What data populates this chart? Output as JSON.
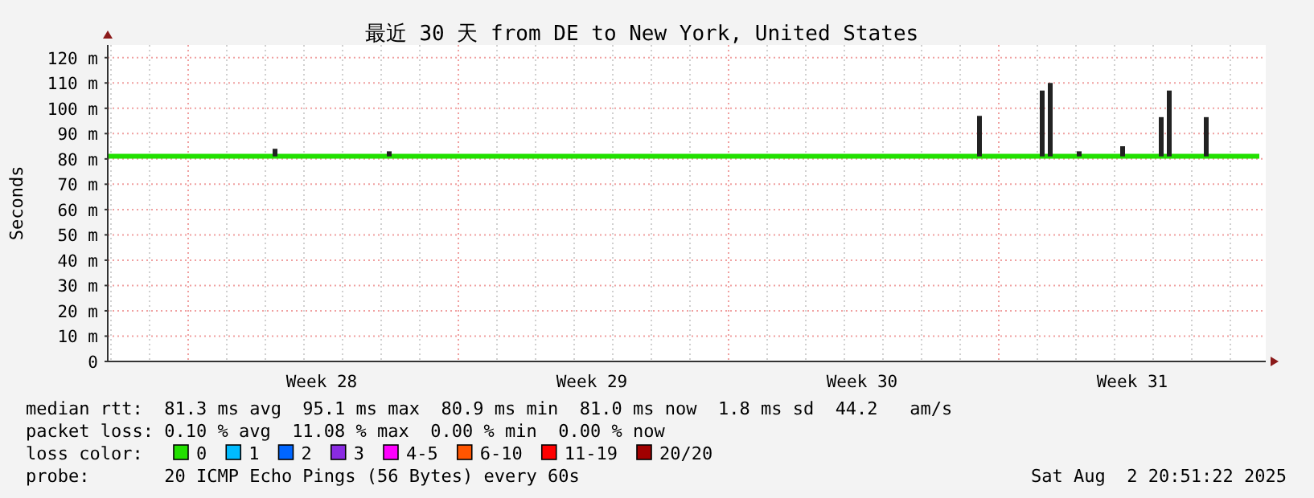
{
  "chart_data": {
    "type": "line",
    "title": "最近 30 天 from DE to New York, United States",
    "ylabel": "Seconds",
    "legend_title": "loss color:",
    "legend": "bottom",
    "grid": true,
    "line_style": "solid",
    "xlim": [
      "2025-07-04T22:00",
      "2025-08-03T22:00"
    ],
    "xticks": [
      {
        "value": "2025-07-10T11:00",
        "label": "Week 28"
      },
      {
        "value": "2025-07-17T11:00",
        "label": "Week 29"
      },
      {
        "value": "2025-07-24T11:00",
        "label": "Week 30"
      },
      {
        "value": "2025-07-31T11:00",
        "label": "Week 31"
      }
    ],
    "ylim": [
      0,
      125
    ],
    "yticks": [
      0,
      {
        "value": 10,
        "label": "10 m"
      },
      {
        "value": 20,
        "label": "20 m"
      },
      {
        "value": 30,
        "label": "30 m"
      },
      {
        "value": 40,
        "label": "40 m"
      },
      {
        "value": 50,
        "label": "50 m"
      },
      {
        "value": 60,
        "label": "60 m"
      },
      {
        "value": 70,
        "label": "70 m"
      },
      {
        "value": 80,
        "label": "80 m"
      },
      {
        "value": 90,
        "label": "90 m"
      },
      {
        "value": 100,
        "label": "100 m"
      },
      {
        "value": 110,
        "label": "110 m"
      },
      {
        "value": 120,
        "label": "120 m"
      }
    ],
    "series": [
      {
        "name": "0",
        "color": "#22e000",
        "x": [
          "2025-07-04T22:00",
          "2025-07-20T00:00",
          "2025-08-03T18:00"
        ],
        "values": [
          81,
          81,
          81
        ]
      },
      {
        "type": "bar",
        "color": "#222222",
        "x": [
          "2025-07-09T06:00",
          "2025-07-12T05:00",
          "2025-07-27T12:00",
          "2025-07-29T03:00",
          "2025-07-29T08:00",
          "2025-07-30T02:00",
          "2025-07-31T05:00",
          "2025-08-01T05:00",
          "2025-08-01T10:00",
          "2025-08-02T09:00"
        ],
        "base": [
          81,
          81,
          81,
          81,
          81,
          81,
          81,
          81,
          81,
          81
        ],
        "values": [
          3,
          2,
          16,
          26,
          29,
          2,
          4,
          15.5,
          26,
          15.5
        ]
      },
      {
        "name": "1",
        "color": "#00bbff"
      },
      {
        "name": "2",
        "color": "#0066ff"
      },
      {
        "name": "3",
        "color": "#8a2be2"
      },
      {
        "name": "4-5",
        "color": "#ff00ff"
      },
      {
        "name": "6-10",
        "color": "#ff5500"
      },
      {
        "name": "11-19",
        "color": "#ff0000"
      },
      {
        "name": "20/20",
        "color": "#a10000"
      }
    ],
    "annotations": [
      "median rtt:  81.3 ms avg  95.1 ms max  80.9 ms min  81.0 ms now  1.8 ms sd  44.2   am/s",
      "packet loss: 0.10 % avg  11.08 % max  0.00 % min  0.00 % now",
      "probe:       20 ICMP Echo Pings (56 Bytes) every 60s",
      "Sat Aug  2 20:51:22 2025"
    ]
  }
}
